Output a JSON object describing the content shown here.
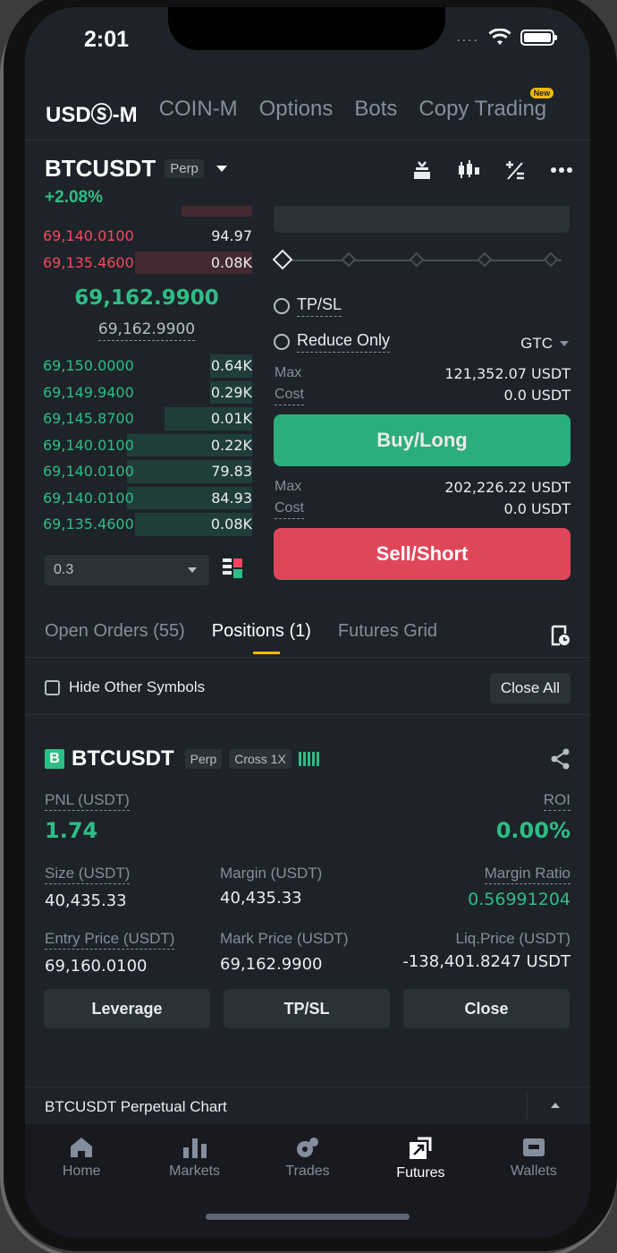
{
  "status_bar": {
    "time": "2:01",
    "dots": "...."
  },
  "top_tabs": [
    {
      "label": "USDⓈ-M",
      "active": true
    },
    {
      "label": "COIN-M",
      "active": false
    },
    {
      "label": "Options",
      "active": false
    },
    {
      "label": "Bots",
      "active": false
    },
    {
      "label": "Copy Trading",
      "active": false,
      "badge": "New"
    }
  ],
  "header": {
    "symbol": "BTCUSDT",
    "contract": "Perp",
    "change": "+2.08%"
  },
  "order_book": {
    "asks": [
      {
        "price": "69,140.0100",
        "qty": "94.97",
        "depth": 0.0
      },
      {
        "price": "69,135.4600",
        "qty": "0.08K",
        "depth": 0.56
      }
    ],
    "mid_price": "69,162.9900",
    "mark_price": "69,162.9900",
    "bids": [
      {
        "price": "69,150.0000",
        "qty": "0.64K",
        "depth": 0.2
      },
      {
        "price": "69,149.9400",
        "qty": "0.29K",
        "depth": 0.2
      },
      {
        "price": "69,145.8700",
        "qty": "0.01K",
        "depth": 0.42
      },
      {
        "price": "69,140.0100",
        "qty": "0.22K",
        "depth": 0.6
      },
      {
        "price": "69,140.0100",
        "qty": "79.83",
        "depth": 0.6
      },
      {
        "price": "69,140.0100",
        "qty": "84.93",
        "depth": 0.6
      },
      {
        "price": "69,135.4600",
        "qty": "0.08K",
        "depth": 0.56
      }
    ],
    "depth_precision": "0.3"
  },
  "order_form": {
    "tpsl_label": "TP/SL",
    "reduce_only_label": "Reduce Only",
    "time_in_force": "GTC",
    "buy": {
      "max_label": "Max",
      "max_value": "121,352.07 USDT",
      "cost_label": "Cost",
      "cost_value": "0.0 USDT",
      "button": "Buy/Long"
    },
    "sell": {
      "max_label": "Max",
      "max_value": "202,226.22 USDT",
      "cost_label": "Cost",
      "cost_value": "0.0 USDT",
      "button": "Sell/Short"
    }
  },
  "positions_tabs": [
    {
      "label": "Open Orders (55)",
      "active": false
    },
    {
      "label": "Positions (1)",
      "active": true
    },
    {
      "label": "Futures Grid",
      "active": false
    }
  ],
  "hide_other_symbols": "Hide Other Symbols",
  "close_all": "Close All",
  "position": {
    "side_badge": "B",
    "symbol": "BTCUSDT",
    "contract": "Perp",
    "margin_mode": "Cross 1X",
    "pnl_label": "PNL (USDT)",
    "pnl_value": "1.74",
    "roi_label": "ROI",
    "roi_value": "0.00%",
    "size_label": "Size (USDT)",
    "size_value": "40,435.33",
    "margin_label": "Margin (USDT)",
    "margin_value": "40,435.33",
    "margin_ratio_label": "Margin Ratio",
    "margin_ratio_value": "0.56991204",
    "entry_label": "Entry Price (USDT)",
    "entry_value": "69,160.0100",
    "mark_label": "Mark Price (USDT)",
    "mark_value": "69,162.9900",
    "liq_label": "Liq.Price (USDT)",
    "liq_value": "-138,401.8247 USDT",
    "buttons": {
      "leverage": "Leverage",
      "tpsl": "TP/SL",
      "close": "Close"
    }
  },
  "chart_bar": {
    "title": "BTCUSDT Perpetual Chart"
  },
  "bottom_nav": [
    {
      "label": "Home",
      "icon": "home-icon",
      "active": false
    },
    {
      "label": "Markets",
      "icon": "markets-icon",
      "active": false
    },
    {
      "label": "Trades",
      "icon": "trades-icon",
      "active": false
    },
    {
      "label": "Futures",
      "icon": "futures-icon",
      "active": true
    },
    {
      "label": "Wallets",
      "icon": "wallets-icon",
      "active": false
    }
  ],
  "colors": {
    "green": "#2ebd85",
    "red": "#f6465d",
    "accent": "#f0b90b",
    "bg": "#1e2329"
  }
}
